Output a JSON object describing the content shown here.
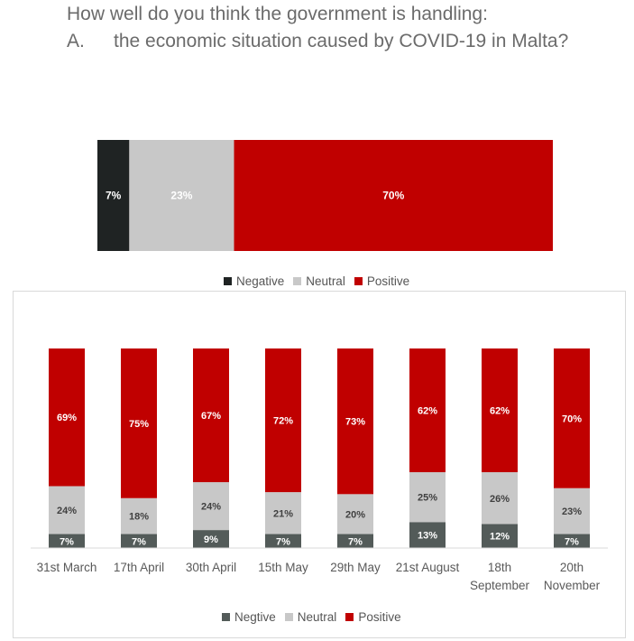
{
  "header": {
    "question": "How well do you think the government is handling:",
    "item_letter": "A.",
    "item_text": "the economic situation caused by COVID-19 in Malta?"
  },
  "colors": {
    "negative_top": "#1f2323",
    "negative_bottom": "#535b59",
    "neutral": "#c8c8c8",
    "positive": "#c00000"
  },
  "chart_data": [
    {
      "type": "bar",
      "orientation": "horizontal-stacked-100",
      "categories": [
        ""
      ],
      "series": [
        {
          "name": "Negative",
          "values": [
            7
          ],
          "labels": [
            "7%"
          ]
        },
        {
          "name": "Neutral",
          "values": [
            23
          ],
          "labels": [
            "23%"
          ]
        },
        {
          "name": "Positive",
          "values": [
            70
          ],
          "labels": [
            "70%"
          ]
        }
      ],
      "legend": [
        "Negative",
        "Neutral",
        "Positive"
      ],
      "legend_position": "bottom"
    },
    {
      "type": "bar",
      "orientation": "vertical-stacked-100",
      "categories": [
        "31st March",
        "17th April",
        "30th April",
        "15th May",
        "29th May",
        "21st August",
        "18th September",
        "20th November"
      ],
      "category_lines": [
        [
          "31st March"
        ],
        [
          "17th April"
        ],
        [
          "30th April"
        ],
        [
          "15th May"
        ],
        [
          "29th May"
        ],
        [
          "21st August"
        ],
        [
          "18th",
          "September"
        ],
        [
          "20th",
          "November"
        ]
      ],
      "series": [
        {
          "name": "Negtive",
          "values": [
            7,
            7,
            9,
            7,
            7,
            13,
            12,
            7
          ],
          "labels": [
            "7%",
            "7%",
            "9%",
            "7%",
            "7%",
            "13%",
            "12%",
            "7%"
          ]
        },
        {
          "name": "Neutral",
          "values": [
            24,
            18,
            24,
            21,
            20,
            25,
            26,
            23
          ],
          "labels": [
            "24%",
            "18%",
            "24%",
            "21%",
            "20%",
            "25%",
            "26%",
            "23%"
          ]
        },
        {
          "name": "Positive",
          "values": [
            69,
            75,
            67,
            72,
            73,
            62,
            62,
            70
          ],
          "labels": [
            "69%",
            "75%",
            "67%",
            "72%",
            "73%",
            "62%",
            "62%",
            "70%"
          ]
        }
      ],
      "legend": [
        "Negtive",
        "Neutral",
        "Positive"
      ],
      "legend_position": "bottom"
    }
  ]
}
